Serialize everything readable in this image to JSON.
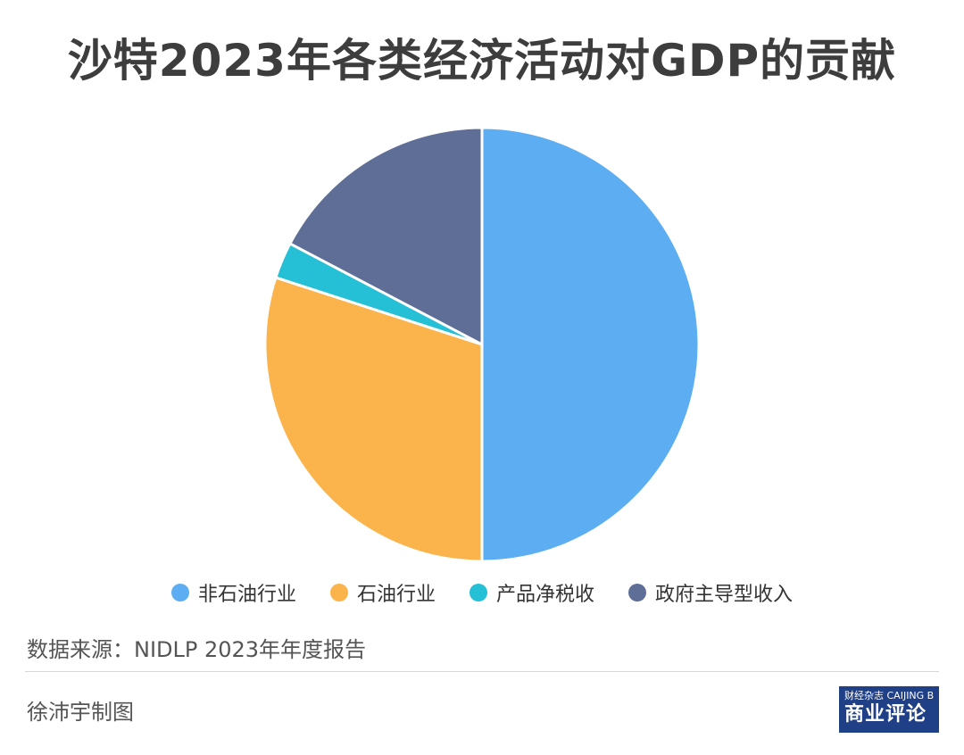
{
  "title": "沙特2023年各类经济活动对GDP的贡献",
  "chart_data": {
    "type": "pie",
    "categories": [
      "非石油行业",
      "石油行业",
      "产品净税收",
      "政府主导型收入"
    ],
    "values": [
      50.0,
      30.0,
      2.7,
      17.3
    ],
    "colors": [
      "#5dadf2",
      "#fbb44c",
      "#26c0d6",
      "#5e6e96"
    ],
    "legend_position": "bottom"
  },
  "source": "数据来源：NIDLP 2023年年度报告",
  "author": "徐沛宇制图",
  "logo": {
    "top_text": "财经杂志 CAIJING Business Review",
    "main_text": "商业评论"
  }
}
